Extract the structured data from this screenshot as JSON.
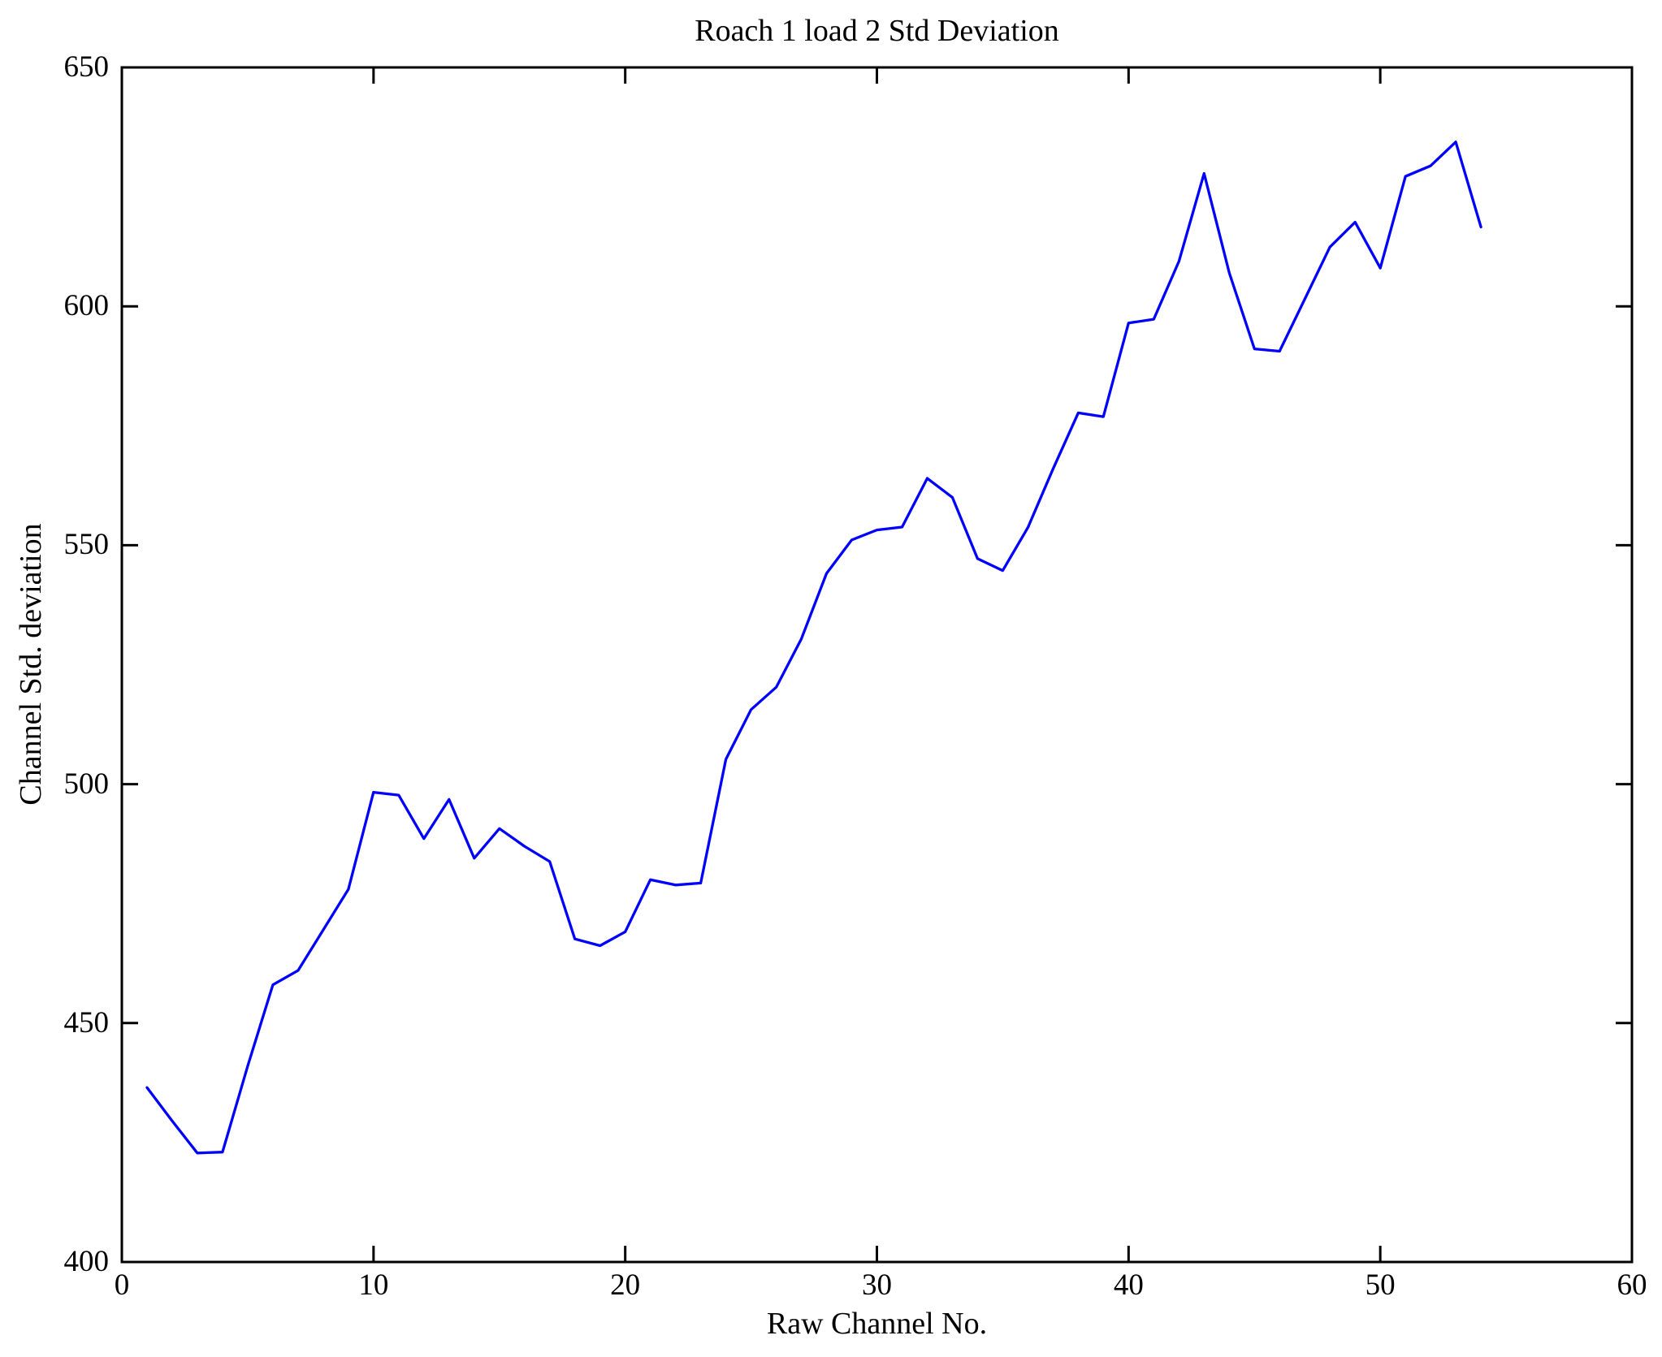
{
  "chart_data": {
    "type": "line",
    "title": "Roach 1 load 2 Std Deviation",
    "xlabel": "Raw Channel No.",
    "ylabel": "Channel Std. deviation",
    "series_name": "Channel Std. deviation",
    "x": [
      1,
      2,
      3,
      4,
      5,
      6,
      7,
      8,
      9,
      10,
      11,
      12,
      13,
      14,
      15,
      16,
      17,
      18,
      19,
      20,
      21,
      22,
      23,
      24,
      25,
      26,
      27,
      28,
      29,
      30,
      31,
      32,
      33,
      34,
      35,
      36,
      37,
      38,
      39,
      40,
      41,
      42,
      43,
      44,
      45,
      46,
      47,
      48,
      49,
      50,
      51,
      52,
      53,
      54
    ],
    "values": [
      436.5,
      429.5,
      422.8,
      423,
      441,
      458,
      461,
      469.5,
      478,
      498.3,
      497.7,
      488.6,
      496.8,
      484.5,
      490.7,
      487,
      483.8,
      467.6,
      466.2,
      469.1,
      480,
      478.9,
      479.3,
      505.2,
      515.6,
      520.3,
      530.4,
      544.1,
      551.1,
      553.2,
      553.8,
      564,
      560,
      547.2,
      544.7,
      553.7,
      566,
      577.7,
      576.9,
      596.5,
      597.3,
      609.4,
      627.8,
      607,
      591.1,
      590.6,
      601.5,
      612.4,
      617.6,
      608,
      627.2,
      629.4,
      634.4,
      616.6
    ],
    "xlim": [
      0,
      60
    ],
    "ylim": [
      400,
      650
    ],
    "xticks": [
      0,
      10,
      20,
      30,
      40,
      50,
      60
    ],
    "yticks": [
      400,
      450,
      500,
      550,
      600,
      650
    ],
    "grid": false,
    "legend_position": "none",
    "line_color": "#0000FF",
    "axis_color": "#000000",
    "background_color": "#FFFFFF"
  }
}
